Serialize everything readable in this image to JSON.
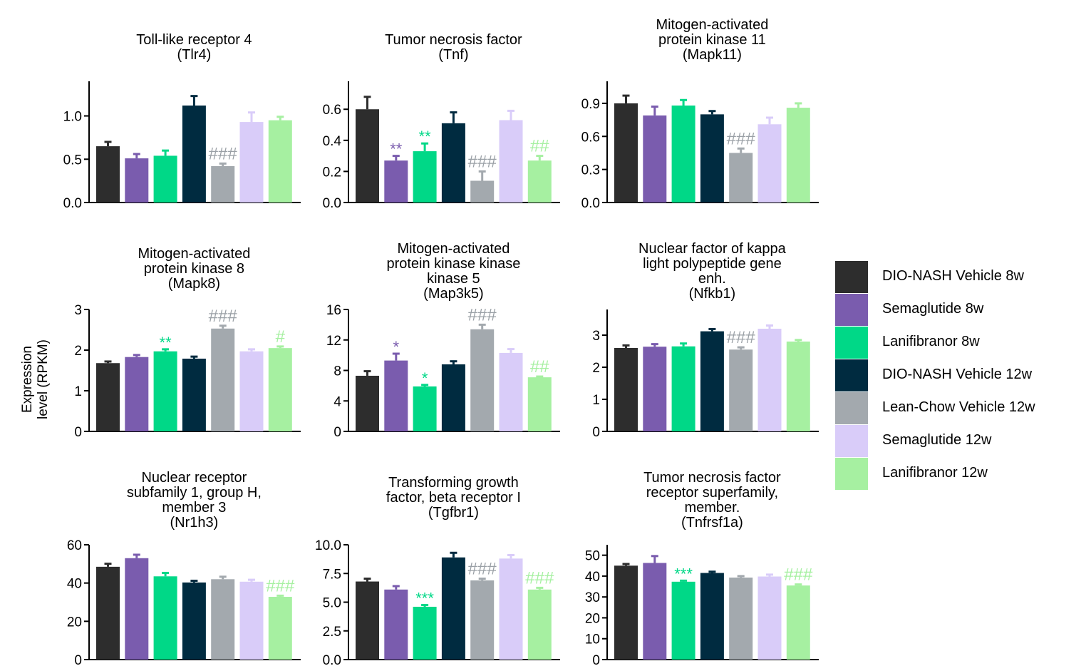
{
  "y_axis_label": [
    "Expression",
    "level (RPKM)"
  ],
  "series": [
    {
      "name": "DIO-NASH Vehicle 8w",
      "color": "#2d2d2d"
    },
    {
      "name": "Semaglutide 8w",
      "color": "#7a5cae"
    },
    {
      "name": "Lanifibranor 8w",
      "color": "#00d887"
    },
    {
      "name": "DIO-NASH Vehicle 12w",
      "color": "#002b40"
    },
    {
      "name": "Lean-Chow Vehicle 12w",
      "color": "#a3a9ae"
    },
    {
      "name": "Semaglutide 12w",
      "color": "#d9ccf9"
    },
    {
      "name": "Lanifibranor 12w",
      "color": "#a6f0a1"
    }
  ],
  "chart_data": [
    {
      "type": "bar",
      "title": [
        "Toll-like receptor 4",
        "(Tlr4)"
      ],
      "ylim": [
        0,
        1.4
      ],
      "yticks": [
        "0.0",
        "0.5",
        "1.0"
      ],
      "values": [
        0.65,
        0.51,
        0.54,
        1.12,
        0.42,
        0.93,
        0.95
      ],
      "errors": [
        0.05,
        0.05,
        0.06,
        0.11,
        0.03,
        0.11,
        0.04
      ],
      "annotations": [
        {
          "series": 4,
          "text": "###"
        }
      ]
    },
    {
      "type": "bar",
      "title": [
        "Tumor necrosis factor",
        "(Tnf)"
      ],
      "ylim": [
        0,
        0.78
      ],
      "yticks": [
        "0.0",
        "0.2",
        "0.4",
        "0.6"
      ],
      "values": [
        0.6,
        0.27,
        0.33,
        0.51,
        0.14,
        0.53,
        0.27
      ],
      "errors": [
        0.08,
        0.03,
        0.05,
        0.07,
        0.06,
        0.06,
        0.03
      ],
      "annotations": [
        {
          "series": 1,
          "text": "**"
        },
        {
          "series": 2,
          "text": "**"
        },
        {
          "series": 4,
          "text": "###"
        },
        {
          "series": 6,
          "text": "##"
        }
      ]
    },
    {
      "type": "bar",
      "title": [
        "Mitogen-activated",
        "protein kinase 11",
        "(Mapk11)"
      ],
      "ylim": [
        0,
        1.1
      ],
      "yticks": [
        "0.0",
        "0.3",
        "0.6",
        "0.9"
      ],
      "values": [
        0.9,
        0.79,
        0.88,
        0.8,
        0.45,
        0.71,
        0.86
      ],
      "errors": [
        0.07,
        0.08,
        0.05,
        0.03,
        0.04,
        0.06,
        0.04
      ],
      "annotations": [
        {
          "series": 4,
          "text": "###"
        }
      ]
    },
    {
      "type": "bar",
      "title": [
        "Mitogen-activated",
        "protein kinase 8",
        "(Mapk8)"
      ],
      "ylim": [
        0,
        3
      ],
      "yticks": [
        "0",
        "1",
        "2",
        "3"
      ],
      "values": [
        1.68,
        1.83,
        1.97,
        1.79,
        2.53,
        1.97,
        2.05
      ],
      "errors": [
        0.04,
        0.05,
        0.05,
        0.05,
        0.07,
        0.05,
        0.04
      ],
      "annotations": [
        {
          "series": 2,
          "text": "**"
        },
        {
          "series": 4,
          "text": "###"
        },
        {
          "series": 6,
          "text": "#"
        }
      ]
    },
    {
      "type": "bar",
      "title": [
        "Mitogen-activated",
        "protein kinase kinase",
        "kinase 5",
        "(Map3k5)"
      ],
      "ylim": [
        0,
        16
      ],
      "yticks": [
        "0",
        "4",
        "8",
        "12",
        "16"
      ],
      "values": [
        7.3,
        9.3,
        5.9,
        8.8,
        13.4,
        10.3,
        7.1
      ],
      "errors": [
        0.6,
        0.9,
        0.2,
        0.4,
        0.6,
        0.5,
        0.1
      ],
      "annotations": [
        {
          "series": 1,
          "text": "*"
        },
        {
          "series": 2,
          "text": "*"
        },
        {
          "series": 4,
          "text": "###"
        },
        {
          "series": 6,
          "text": "##"
        }
      ]
    },
    {
      "type": "bar",
      "title": [
        "Nuclear factor of kappa",
        "light polypeptide gene",
        "enh.",
        "(Nfkb1)"
      ],
      "ylim": [
        0,
        3.8
      ],
      "yticks": [
        "0",
        "1",
        "2",
        "3"
      ],
      "values": [
        2.6,
        2.64,
        2.65,
        3.12,
        2.55,
        3.2,
        2.8
      ],
      "errors": [
        0.08,
        0.08,
        0.09,
        0.07,
        0.07,
        0.1,
        0.05
      ],
      "annotations": [
        {
          "series": 4,
          "text": "###"
        }
      ]
    },
    {
      "type": "bar",
      "title": [
        "Nuclear receptor",
        "subfamily 1, group H,",
        "member 3",
        "(Nr1h3)"
      ],
      "ylim": [
        0,
        60
      ],
      "yticks": [
        "0",
        "20",
        "40",
        "60"
      ],
      "values": [
        48.5,
        53,
        43.5,
        40.3,
        42,
        40.7,
        32.8
      ],
      "errors": [
        1.6,
        1.8,
        1.8,
        0.9,
        1.3,
        1.0,
        0.6
      ],
      "annotations": [
        {
          "series": 6,
          "text": "###"
        }
      ]
    },
    {
      "type": "bar",
      "title": [
        "Transforming growth",
        "factor, beta receptor I",
        "(Tgfbr1)"
      ],
      "ylim": [
        0,
        10
      ],
      "yticks": [
        "0.0",
        "2.5",
        "5.0",
        "7.5",
        "10.0"
      ],
      "values": [
        6.8,
        6.1,
        4.6,
        8.9,
        6.9,
        8.8,
        6.1
      ],
      "errors": [
        0.25,
        0.3,
        0.15,
        0.4,
        0.15,
        0.3,
        0.15
      ],
      "annotations": [
        {
          "series": 2,
          "text": "***"
        },
        {
          "series": 4,
          "text": "###"
        },
        {
          "series": 6,
          "text": "###"
        }
      ]
    },
    {
      "type": "bar",
      "title": [
        "Tumor necrosis factor",
        "receptor superfamily,",
        "member.",
        "(Tnfrsf1a)"
      ],
      "ylim": [
        0,
        55
      ],
      "yticks": [
        "0",
        "10",
        "20",
        "30",
        "40",
        "50"
      ],
      "values": [
        45,
        46.3,
        37.3,
        41.5,
        39.3,
        39.8,
        35.5
      ],
      "errors": [
        0.8,
        3.3,
        0.5,
        0.6,
        0.7,
        0.9,
        0.5
      ],
      "annotations": [
        {
          "series": 2,
          "text": "***"
        },
        {
          "series": 6,
          "text": "###"
        }
      ]
    }
  ]
}
